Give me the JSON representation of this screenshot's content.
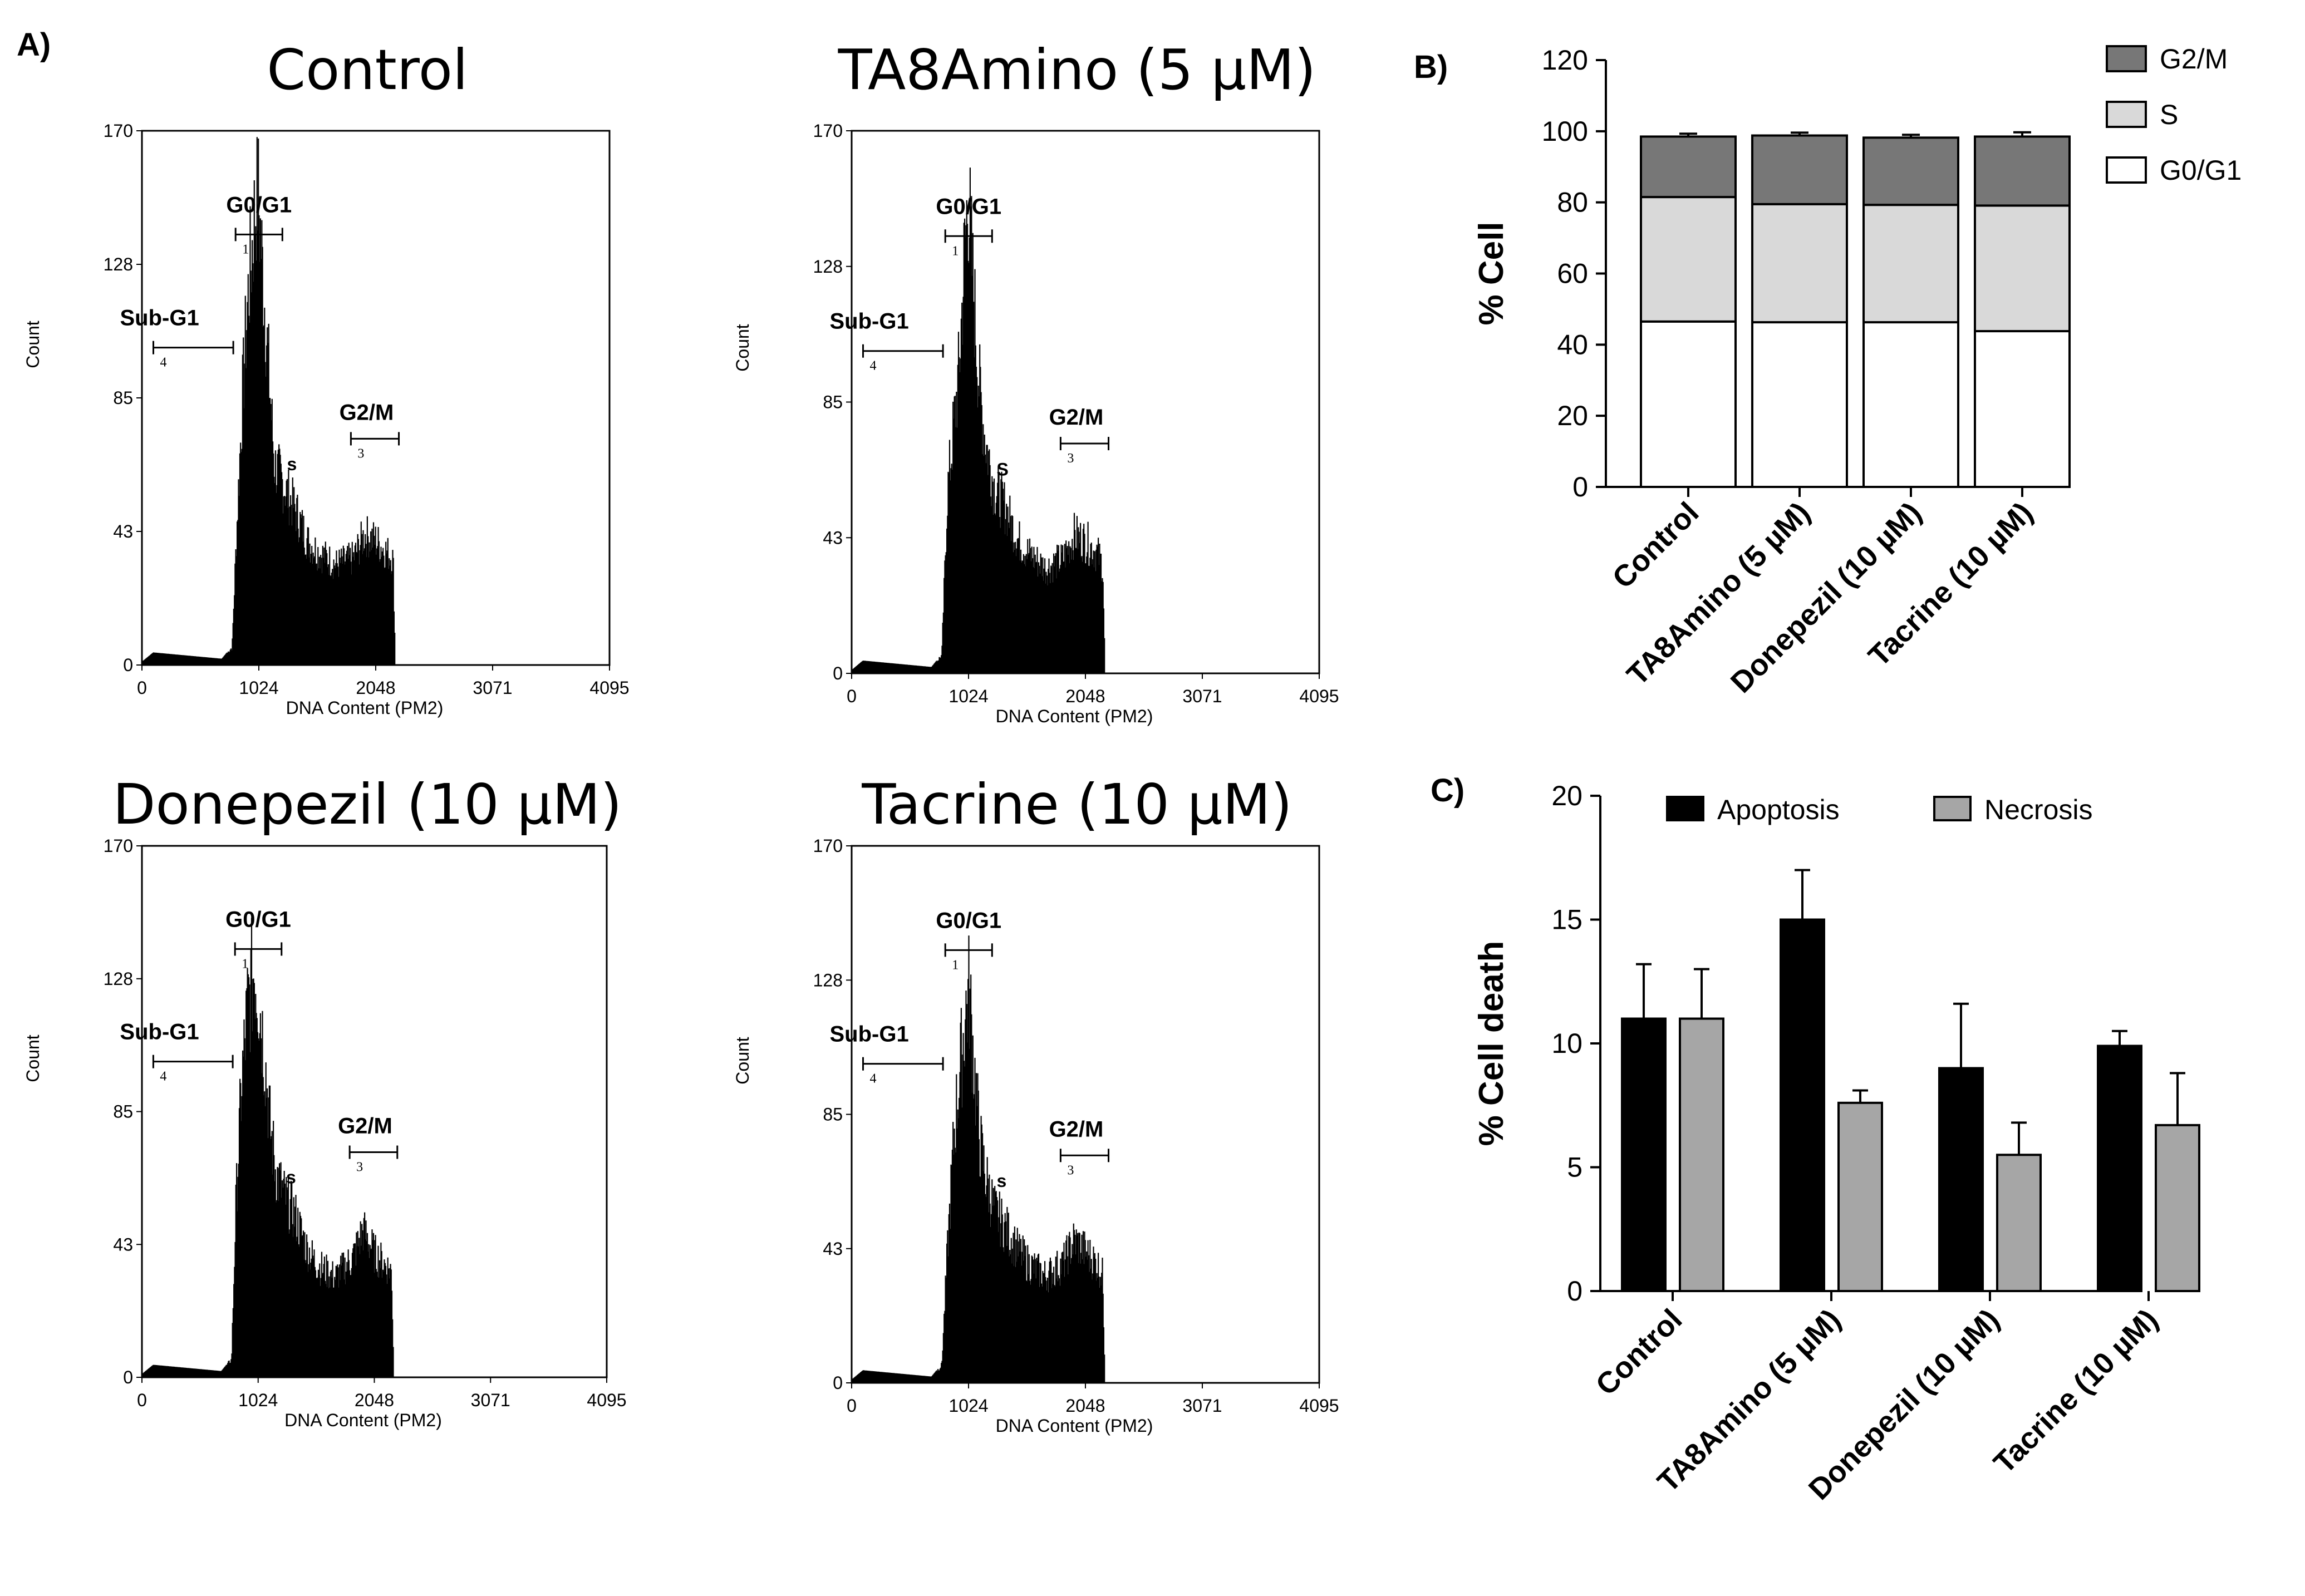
{
  "panel_labels": {
    "a": "A)",
    "b": "B)",
    "c": "C)"
  },
  "colors": {
    "g2m": "#777777",
    "s": "#d9d9d9",
    "g0g1": "#ffffff",
    "apoptosis": "#000000",
    "necrosis": "#a6a6a6"
  },
  "chart_data": [
    {
      "id": "hist-control",
      "type": "histogram",
      "title": "Control",
      "xlabel": "DNA Content (PM2)",
      "ylabel": "Count",
      "xlim": [
        0,
        4095
      ],
      "ylim": [
        0,
        170
      ],
      "xticks": [
        "0",
        "1024",
        "2048",
        "3071",
        "4095"
      ],
      "yticks": [
        "0",
        "43",
        "85",
        "128",
        "170"
      ],
      "gates": {
        "sub_g1": {
          "label": "Sub-G1",
          "number": "4",
          "range": [
            100,
            800
          ]
        },
        "g0g1": {
          "label": "G0/G1",
          "number": "1",
          "range": [
            820,
            1230
          ]
        },
        "g2m": {
          "label": "G2/M",
          "number": "3",
          "range": [
            1830,
            2250
          ]
        },
        "s": {
          "label": "s"
        }
      },
      "profile": [
        [
          0,
          1
        ],
        [
          100,
          4
        ],
        [
          700,
          2
        ],
        [
          790,
          6
        ],
        [
          830,
          45
        ],
        [
          880,
          90
        ],
        [
          930,
          125
        ],
        [
          980,
          148
        ],
        [
          1010,
          164
        ],
        [
          1060,
          132
        ],
        [
          1110,
          100
        ],
        [
          1160,
          68
        ],
        [
          1250,
          60
        ],
        [
          1350,
          52
        ],
        [
          1450,
          42
        ],
        [
          1550,
          38
        ],
        [
          1700,
          34
        ],
        [
          1850,
          36
        ],
        [
          1950,
          44
        ],
        [
          2050,
          42
        ],
        [
          2150,
          38
        ],
        [
          2200,
          36
        ],
        [
          2220,
          0
        ]
      ]
    },
    {
      "id": "hist-ta8amino",
      "type": "histogram",
      "title": "TA8Amino (5 µM)",
      "xlabel": "DNA Content (PM2)",
      "ylabel": "Count",
      "xlim": [
        0,
        4095
      ],
      "ylim": [
        0,
        170
      ],
      "xticks": [
        "0",
        "1024",
        "2048",
        "3071",
        "4095"
      ],
      "yticks": [
        "0",
        "43",
        "85",
        "128",
        "170"
      ],
      "gates": {
        "sub_g1": {
          "label": "Sub-G1",
          "number": "4",
          "range": [
            100,
            800
          ]
        },
        "g0g1": {
          "label": "G0/G1",
          "number": "1",
          "range": [
            820,
            1230
          ]
        },
        "g2m": {
          "label": "G2/M",
          "number": "3",
          "range": [
            1830,
            2250
          ]
        },
        "s": {
          "label": "S"
        }
      },
      "profile": [
        [
          0,
          1
        ],
        [
          100,
          4
        ],
        [
          700,
          2
        ],
        [
          790,
          6
        ],
        [
          840,
          60
        ],
        [
          890,
          80
        ],
        [
          940,
          100
        ],
        [
          990,
          140
        ],
        [
          1020,
          160
        ],
        [
          1070,
          125
        ],
        [
          1120,
          95
        ],
        [
          1170,
          78
        ],
        [
          1250,
          62
        ],
        [
          1350,
          55
        ],
        [
          1450,
          45
        ],
        [
          1550,
          40
        ],
        [
          1700,
          35
        ],
        [
          1850,
          38
        ],
        [
          1950,
          46
        ],
        [
          2050,
          44
        ],
        [
          2150,
          40
        ],
        [
          2200,
          36
        ],
        [
          2220,
          0
        ]
      ]
    },
    {
      "id": "hist-donepezil",
      "type": "histogram",
      "title": "Donepezil (10 µM)",
      "xlabel": "DNA Content (PM2)",
      "ylabel": "Count",
      "xlim": [
        0,
        4095
      ],
      "ylim": [
        0,
        170
      ],
      "xticks": [
        "0",
        "1024",
        "2048",
        "3071",
        "4095"
      ],
      "yticks": [
        "0",
        "43",
        "85",
        "128",
        "170"
      ],
      "gates": {
        "sub_g1": {
          "label": "Sub-G1",
          "number": "4",
          "range": [
            100,
            800
          ]
        },
        "g0g1": {
          "label": "G0/G1",
          "number": "1",
          "range": [
            820,
            1230
          ]
        },
        "g2m": {
          "label": "G2/M",
          "number": "3",
          "range": [
            1830,
            2250
          ]
        },
        "s": {
          "label": "s"
        }
      },
      "profile": [
        [
          0,
          1
        ],
        [
          100,
          4
        ],
        [
          700,
          2
        ],
        [
          790,
          6
        ],
        [
          830,
          60
        ],
        [
          880,
          100
        ],
        [
          930,
          125
        ],
        [
          990,
          140
        ],
        [
          1030,
          130
        ],
        [
          1080,
          110
        ],
        [
          1130,
          85
        ],
        [
          1180,
          70
        ],
        [
          1250,
          62
        ],
        [
          1350,
          55
        ],
        [
          1450,
          44
        ],
        [
          1550,
          38
        ],
        [
          1700,
          34
        ],
        [
          1850,
          40
        ],
        [
          1950,
          50
        ],
        [
          2050,
          42
        ],
        [
          2150,
          38
        ],
        [
          2200,
          36
        ],
        [
          2220,
          0
        ]
      ]
    },
    {
      "id": "hist-tacrine",
      "type": "histogram",
      "title": "Tacrine (10 µM)",
      "xlabel": "DNA Content (PM2)",
      "ylabel": "Count",
      "xlim": [
        0,
        4095
      ],
      "ylim": [
        0,
        170
      ],
      "xticks": [
        "0",
        "1024",
        "2048",
        "3071",
        "4095"
      ],
      "yticks": [
        "0",
        "43",
        "85",
        "128",
        "170"
      ],
      "gates": {
        "sub_g1": {
          "label": "Sub-G1",
          "number": "4",
          "range": [
            100,
            800
          ]
        },
        "g0g1": {
          "label": "G0/G1",
          "number": "1",
          "range": [
            820,
            1230
          ]
        },
        "g2m": {
          "label": "G2/M",
          "number": "3",
          "range": [
            1830,
            2250
          ]
        },
        "s": {
          "label": "s"
        }
      },
      "profile": [
        [
          0,
          1
        ],
        [
          100,
          4
        ],
        [
          700,
          2
        ],
        [
          790,
          6
        ],
        [
          840,
          45
        ],
        [
          900,
          85
        ],
        [
          950,
          105
        ],
        [
          1000,
          125
        ],
        [
          1030,
          132
        ],
        [
          1070,
          108
        ],
        [
          1120,
          82
        ],
        [
          1170,
          70
        ],
        [
          1250,
          58
        ],
        [
          1350,
          52
        ],
        [
          1450,
          45
        ],
        [
          1550,
          40
        ],
        [
          1700,
          36
        ],
        [
          1850,
          40
        ],
        [
          1950,
          48
        ],
        [
          2050,
          44
        ],
        [
          2150,
          40
        ],
        [
          2200,
          36
        ],
        [
          2220,
          0
        ]
      ]
    },
    {
      "id": "cell-cycle",
      "type": "bar",
      "stacked": true,
      "categories": [
        "Control",
        "TA8Amino (5 µM)",
        "Donepezil (10 µM)",
        "Tacrine (10 µM)"
      ],
      "series": [
        {
          "name": "G0/G1",
          "values": [
            46.5,
            46.3,
            46.3,
            43.8
          ],
          "errors": [
            1.6,
            2.8,
            1.0,
            1.9
          ]
        },
        {
          "name": "S",
          "values": [
            35.0,
            33.2,
            33.0,
            35.3
          ],
          "errors": [
            1.6,
            2.8,
            1.0,
            1.6
          ]
        },
        {
          "name": "G2/M",
          "values": [
            17.0,
            19.3,
            18.9,
            19.4
          ],
          "errors": [
            0.8,
            0.8,
            0.8,
            1.2
          ]
        }
      ],
      "legend_order": [
        "G2/M",
        "S",
        "G0/G1"
      ],
      "ylabel": "% Cell",
      "ylim": [
        0,
        120
      ],
      "yticks": [
        "0",
        "20",
        "40",
        "60",
        "80",
        "100",
        "120"
      ],
      "legend_position": "top-right"
    },
    {
      "id": "cell-death",
      "type": "bar",
      "stacked": false,
      "categories": [
        "Control",
        "TA8Amino (5 µM)",
        "Donepezil (10 µM)",
        "Tacrine (10 µM)"
      ],
      "series": [
        {
          "name": "Apoptosis",
          "values": [
            11.0,
            15.0,
            9.0,
            9.9
          ],
          "errors": [
            2.2,
            2.0,
            2.6,
            0.6
          ]
        },
        {
          "name": "Necrosis",
          "values": [
            11.0,
            7.6,
            5.5,
            6.7
          ],
          "errors": [
            2.0,
            0.5,
            1.3,
            2.1
          ]
        }
      ],
      "ylabel": "% Cell death",
      "ylim": [
        0,
        20
      ],
      "yticks": [
        "0",
        "5",
        "10",
        "15",
        "20"
      ],
      "legend_position": "top"
    }
  ]
}
